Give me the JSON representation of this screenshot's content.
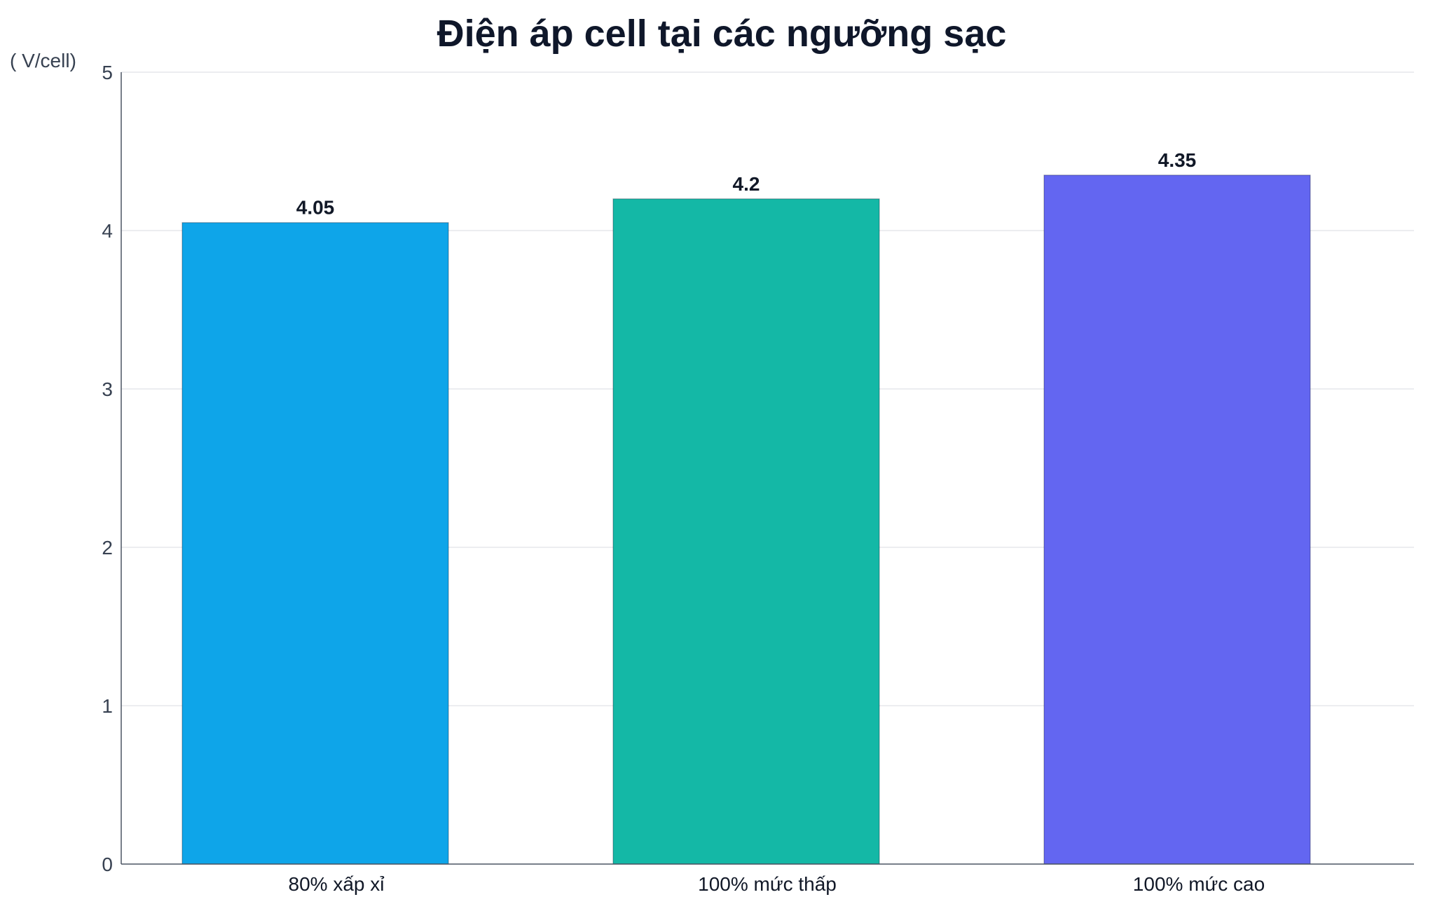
{
  "chart_data": {
    "type": "bar",
    "title": "Điện áp cell tại các ngưỡng sạc",
    "ylabel": "( V/cell)",
    "xlabel": "",
    "ylim": [
      0,
      5
    ],
    "yticks": [
      0,
      1,
      2,
      3,
      4,
      5
    ],
    "grid": true,
    "categories": [
      "80% xấp xỉ",
      "100% mức thấp",
      "100% mức cao"
    ],
    "values": [
      4.05,
      4.2,
      4.35
    ],
    "data_labels": [
      "4.05",
      "4.2",
      "4.35"
    ],
    "colors": [
      "#0ea5e9",
      "#14b8a6",
      "#6366f1"
    ]
  }
}
